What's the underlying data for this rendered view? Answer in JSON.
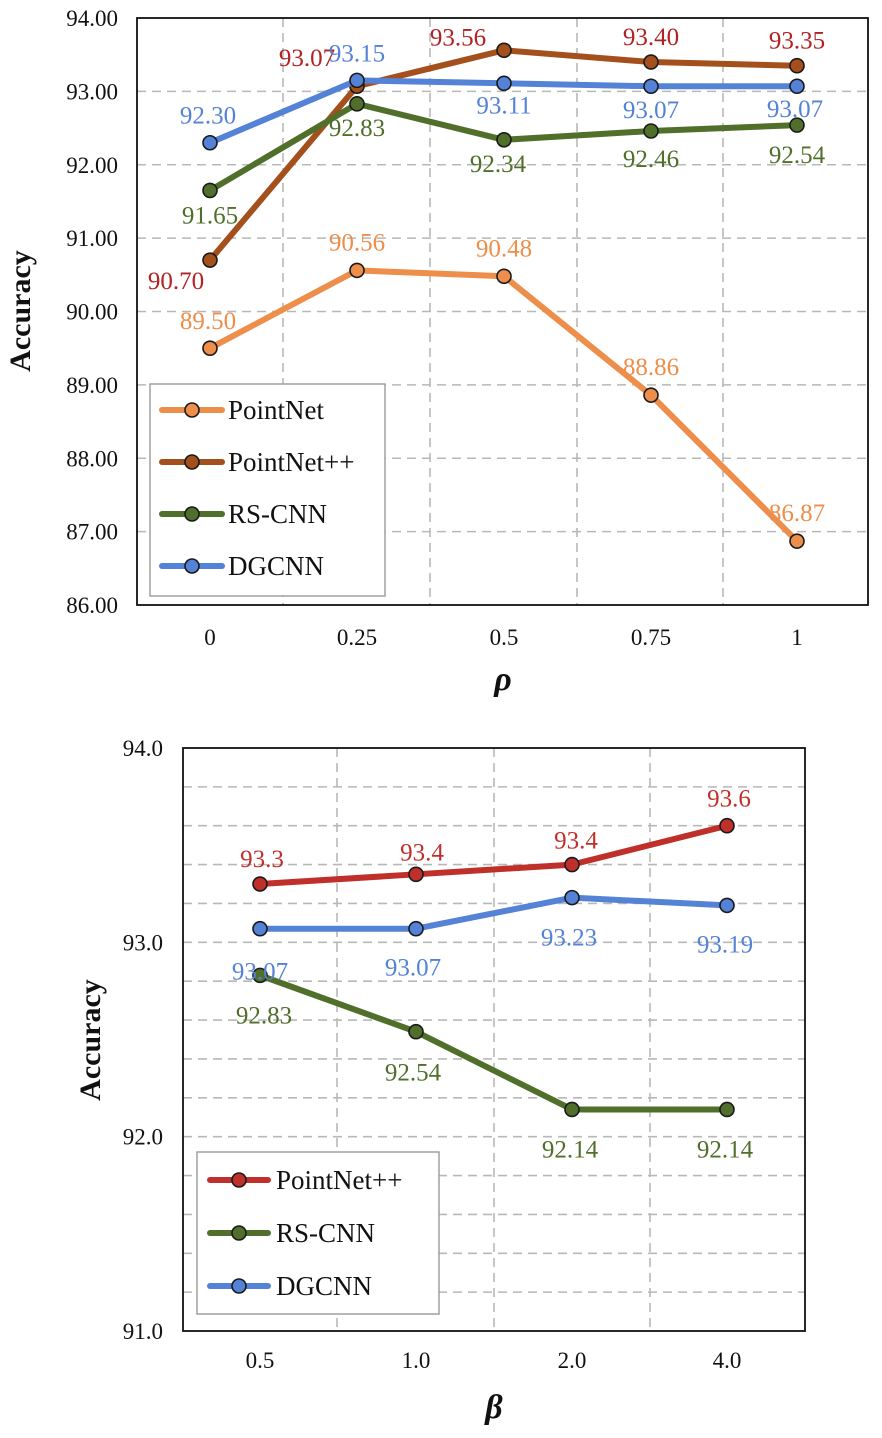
{
  "chart_data": [
    {
      "type": "line",
      "title": "",
      "xlabel": "ρ",
      "ylabel": "Accuracy",
      "categories": [
        "0",
        "0.25",
        "0.5",
        "0.75",
        "1"
      ],
      "ylim": [
        86,
        94
      ],
      "yticks": [
        "86.00",
        "87.00",
        "88.00",
        "89.00",
        "90.00",
        "91.00",
        "92.00",
        "93.00",
        "94.00"
      ],
      "grid": true,
      "legend": "bottom-left",
      "series": [
        {
          "name": "PointNet",
          "color": "#ED8E4B",
          "values": [
            89.5,
            90.56,
            90.48,
            88.86,
            86.87
          ],
          "labels": [
            "89.50",
            "90.56",
            "90.48",
            "88.86",
            "86.87"
          ]
        },
        {
          "name": "PointNet++",
          "color": "#A4501D",
          "label_color": "#B22222",
          "values": [
            90.7,
            93.07,
            93.56,
            93.4,
            93.35
          ],
          "labels": [
            "90.70",
            "93.07",
            "93.56",
            "93.40",
            "93.35"
          ]
        },
        {
          "name": "RS-CNN",
          "color": "#4F6F2A",
          "values": [
            91.65,
            92.83,
            92.34,
            92.46,
            92.54
          ],
          "labels": [
            "91.65",
            "92.83",
            "92.34",
            "92.46",
            "92.54"
          ]
        },
        {
          "name": "DGCNN",
          "color": "#5482D6",
          "values": [
            92.3,
            93.15,
            93.11,
            93.07,
            93.07
          ],
          "labels": [
            "92.30",
            "93.15",
            "93.11",
            "93.07",
            "93.07"
          ]
        }
      ]
    },
    {
      "type": "line",
      "title": "",
      "xlabel": "β",
      "ylabel": "Accuracy",
      "categories": [
        "0.5",
        "1.0",
        "2.0",
        "4.0"
      ],
      "ylim": [
        91,
        94
      ],
      "yticks": [
        "91.0",
        "92.0",
        "93.0",
        "94.0"
      ],
      "grid": true,
      "legend": "bottom-left",
      "series": [
        {
          "name": "PointNet++",
          "color": "#C0302B",
          "values": [
            93.3,
            93.35,
            93.4,
            93.6
          ],
          "labels": [
            "93.3",
            "93.4",
            "93.4",
            "93.6"
          ]
        },
        {
          "name": "RS-CNN",
          "color": "#4F6F2A",
          "values": [
            92.83,
            92.54,
            92.14,
            92.14
          ],
          "labels": [
            "92.83",
            "92.54",
            "92.14",
            "92.14"
          ]
        },
        {
          "name": "DGCNN",
          "color": "#5482D6",
          "values": [
            93.07,
            93.07,
            93.23,
            93.19
          ],
          "labels": [
            "93.07",
            "93.07",
            "93.23",
            "93.19"
          ]
        }
      ]
    }
  ]
}
